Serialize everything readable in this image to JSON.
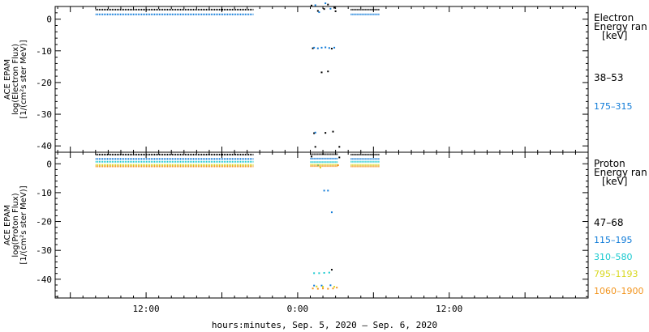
{
  "chart_data": [
    {
      "type": "scatter",
      "panel": "electron",
      "ylabel_lines": [
        "ACE EPAM",
        "log(Electron Flux)",
        "[1/(cm²s ster MeV)]"
      ],
      "ylim": [
        -42,
        4
      ],
      "yticks": [
        0,
        -10,
        -20,
        -30,
        -40
      ],
      "legend_title": [
        "Electron",
        "Energy ran",
        "[keV]"
      ],
      "series": [
        {
          "name": "38–53",
          "color": "#000000",
          "segments": [
            {
              "x": [
                -16,
                -3.5
              ],
              "y": 3.0
            },
            {
              "x": [
                4.2,
                6.5
              ],
              "y": 3.0
            }
          ],
          "points": [
            [
              1.1,
              4.3
            ],
            [
              1.6,
              2.6
            ],
            [
              2.1,
              3.2
            ],
            [
              2.4,
              4.6
            ],
            [
              2.9,
              3.6
            ],
            [
              3.0,
              2.5
            ],
            [
              1.9,
              -16.8
            ],
            [
              2.4,
              -16.5
            ],
            [
              1.3,
              -36.0
            ],
            [
              2.2,
              -35.9
            ],
            [
              2.8,
              -35.5
            ],
            [
              1.4,
              -40.3
            ],
            [
              3.3,
              -40.3
            ],
            [
              1.2,
              -9.2
            ],
            [
              2.7,
              -9.3
            ]
          ]
        },
        {
          "name": "175–315",
          "color": "#0e7ad8",
          "segments": [
            {
              "x": [
                -16,
                -3.5
              ],
              "y": 1.5
            },
            {
              "x": [
                4.2,
                6.5
              ],
              "y": 1.5
            }
          ],
          "points": [
            [
              1.4,
              4.4
            ],
            [
              1.7,
              2.2
            ],
            [
              2.2,
              5.0
            ],
            [
              2.6,
              3.3
            ],
            [
              1.3,
              -9.0
            ],
            [
              1.6,
              -9.2
            ],
            [
              1.9,
              -9.0
            ],
            [
              2.2,
              -8.9
            ],
            [
              2.5,
              -9.1
            ],
            [
              2.9,
              -9.0
            ],
            [
              1.4,
              -35.8
            ]
          ]
        }
      ]
    },
    {
      "type": "scatter",
      "panel": "proton",
      "ylabel_lines": [
        "ACE EPAM",
        "log(Proton Flux)",
        "[1/(cm²s ster MeV)]"
      ],
      "ylim": [
        -46.5,
        4
      ],
      "yticks": [
        0,
        -10,
        -20,
        -30,
        -40
      ],
      "legend_title": [
        "Proton",
        "Energy ran",
        "[keV]"
      ],
      "series": [
        {
          "name": "47–68",
          "color": "#000000",
          "segments": [
            {
              "x": [
                -16,
                -3.5
              ],
              "y": 3.2
            },
            {
              "x": [
                1.0,
                3.2
              ],
              "y": 3.3
            },
            {
              "x": [
                4.2,
                6.5
              ],
              "y": 3.2
            }
          ],
          "points": [
            [
              1.1,
              2.5
            ],
            [
              3.3,
              2.2
            ],
            [
              2.7,
              -36.7
            ]
          ]
        },
        {
          "name": "115–195",
          "color": "#0e7ad8",
          "segments": [
            {
              "x": [
                -16,
                -3.5
              ],
              "y": 1.7
            },
            {
              "x": [
                1.0,
                3.2
              ],
              "y": 1.8
            },
            {
              "x": [
                4.2,
                6.5
              ],
              "y": 1.7
            }
          ],
          "points": [
            [
              2.1,
              -9.3
            ],
            [
              2.4,
              -9.3
            ],
            [
              2.7,
              -16.8
            ],
            [
              1.3,
              -42.2
            ],
            [
              1.9,
              -42.2
            ],
            [
              2.6,
              -42.1
            ]
          ]
        },
        {
          "name": "310–580",
          "color": "#18c9cf",
          "segments": [
            {
              "x": [
                -16,
                -3.5
              ],
              "y": 0.7
            },
            {
              "x": [
                1.0,
                3.2
              ],
              "y": 0.6
            },
            {
              "x": [
                4.2,
                6.5
              ],
              "y": 0.7
            }
          ],
          "points": [
            [
              1.6,
              -0.5
            ],
            [
              1.3,
              -37.9
            ],
            [
              1.7,
              -37.9
            ],
            [
              2.1,
              -37.8
            ],
            [
              2.5,
              -37.7
            ]
          ]
        },
        {
          "name": "795–1193",
          "color": "#d8d81e",
          "segments": [
            {
              "x": [
                -16,
                -3.5
              ],
              "y": -0.4
            },
            {
              "x": [
                1.0,
                3.2
              ],
              "y": -0.3
            },
            {
              "x": [
                4.2,
                6.5
              ],
              "y": -0.4
            }
          ],
          "points": [
            [
              1.8,
              -1.3
            ],
            [
              1.5,
              -42.5
            ],
            [
              2.0,
              -42.6
            ],
            [
              2.9,
              -42.6
            ]
          ]
        },
        {
          "name": "1060–1900",
          "color": "#f2951f",
          "segments": [
            {
              "x": [
                -16,
                -3.5
              ],
              "y": -0.9
            },
            {
              "x": [
                1.0,
                3.2
              ],
              "y": -0.8
            },
            {
              "x": [
                4.2,
                6.5
              ],
              "y": -0.9
            }
          ],
          "points": [
            [
              1.2,
              -43.2
            ],
            [
              1.6,
              -43.3
            ],
            [
              2.0,
              -43.2
            ],
            [
              2.4,
              -43.3
            ],
            [
              2.8,
              -43.2
            ],
            [
              3.1,
              -42.9
            ],
            [
              3.2,
              -0.5
            ]
          ]
        }
      ]
    }
  ],
  "x_axis": {
    "range_hours": [
      -19.2,
      23
    ],
    "ticks": [
      {
        "value": -12,
        "label": "12:00"
      },
      {
        "value": 0,
        "label": "0:00"
      },
      {
        "value": 12,
        "label": "12:00"
      }
    ],
    "minor_every_hours": 1,
    "xlabel": "hours:minutes, Sep.  5, 2020 – Sep.  6, 2020"
  },
  "colors": {
    "axis": "#000000",
    "background": "#ffffff"
  }
}
